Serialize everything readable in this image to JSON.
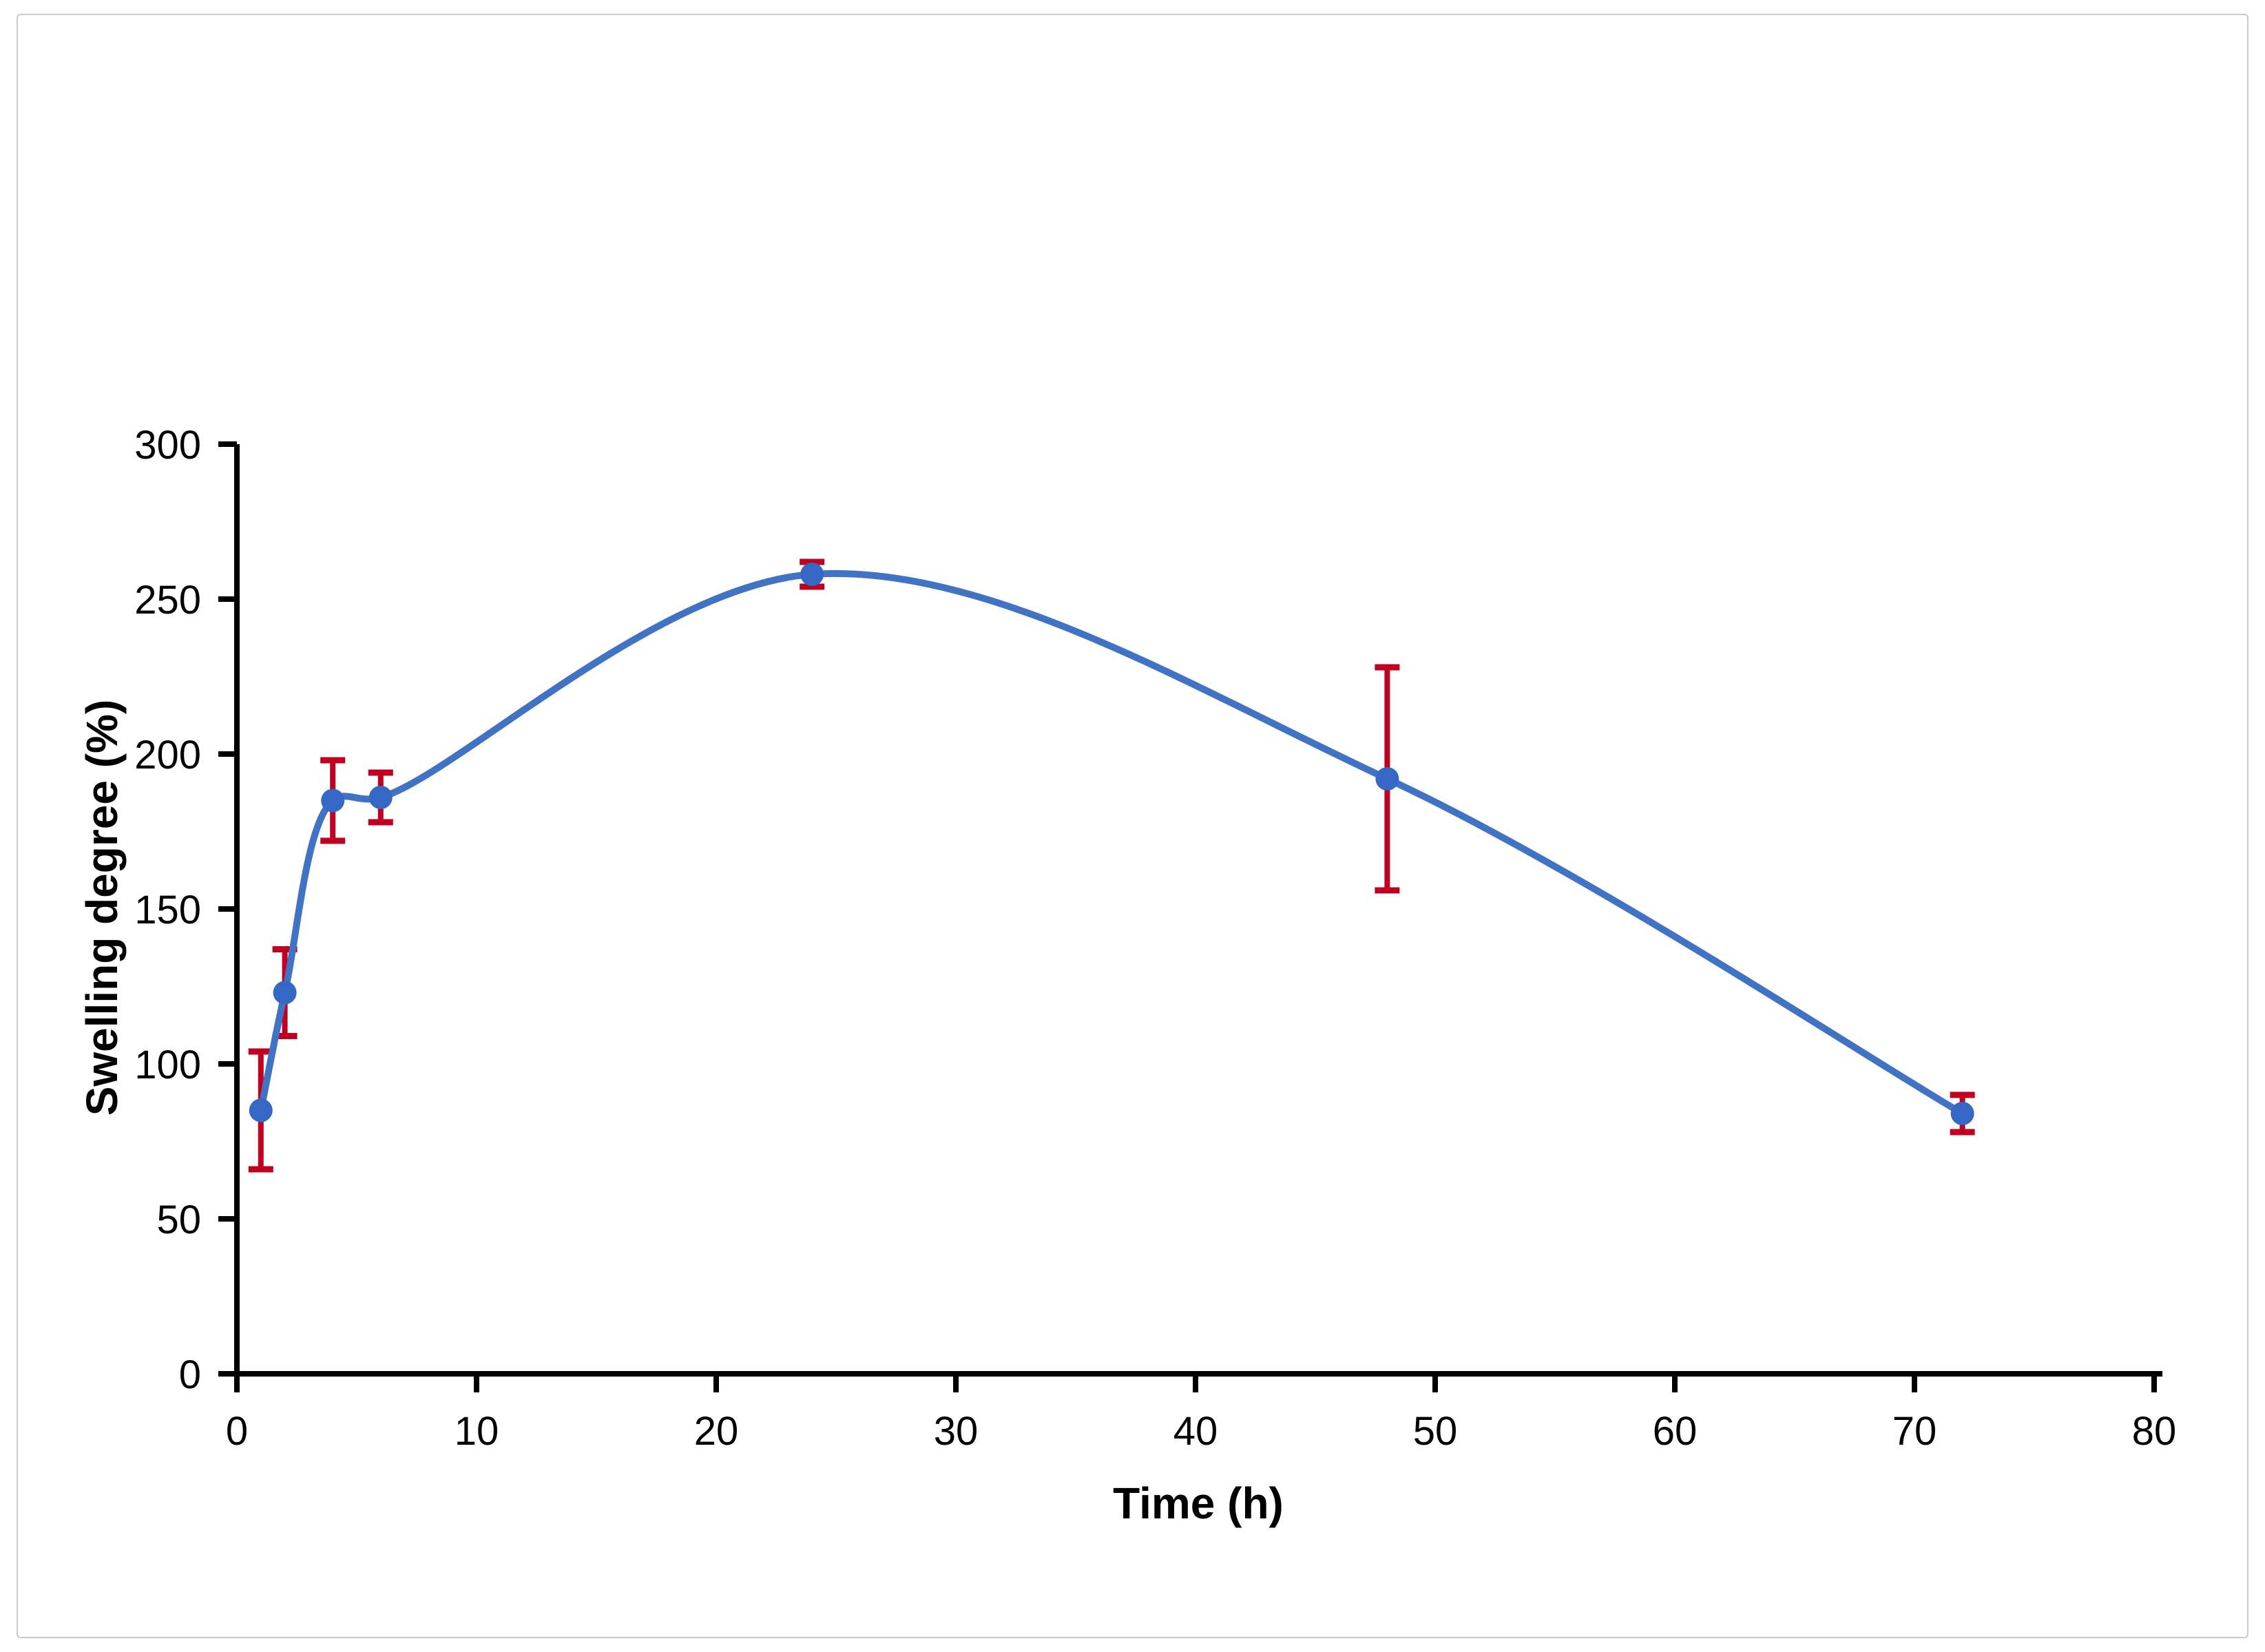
{
  "figure": {
    "background_color": "#ffffff",
    "frame_color": "#c9c9c9"
  },
  "chart_data": {
    "type": "line",
    "title": "",
    "xlabel": "Time (h)",
    "ylabel": "Swelling degree (%)",
    "x": [
      1,
      2,
      4,
      6,
      24,
      48,
      72
    ],
    "series": [
      {
        "name": "Swelling degree",
        "values": [
          85,
          123,
          185,
          186,
          258,
          192,
          84
        ],
        "error_bars": [
          19,
          14,
          13,
          8,
          4,
          36,
          6
        ],
        "smooth": true,
        "marker": "circle"
      }
    ],
    "xlim": [
      0,
      80
    ],
    "ylim": [
      0,
      300
    ],
    "xticks": [
      0,
      10,
      20,
      30,
      40,
      50,
      60,
      70,
      80
    ],
    "yticks": [
      0,
      50,
      100,
      150,
      200,
      250,
      300
    ],
    "grid": false,
    "legend_position": "none",
    "colors": {
      "line": "#4173c4",
      "marker": "#3568c5",
      "error_bar": "#c00020",
      "axis": "#000000"
    }
  }
}
